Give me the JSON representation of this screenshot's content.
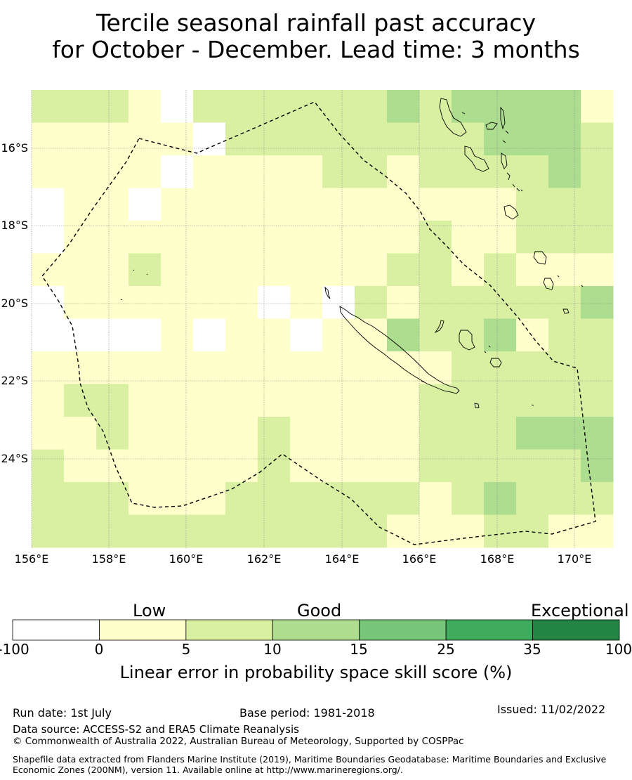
{
  "title": {
    "line1": "Tercile seasonal rainfall past accuracy",
    "line2": "for October - December. Lead time: 3 months"
  },
  "map": {
    "longitudes": [
      "156°E",
      "158°E",
      "160°E",
      "162°E",
      "164°E",
      "166°E",
      "168°E",
      "170°E"
    ],
    "latitudes": [
      "16°S",
      "18°S",
      "20°S",
      "22°S",
      "24°S"
    ],
    "grid_columns": 18,
    "grid_rows": 14,
    "skill_class_colors": [
      "#ffffff",
      "#ffffcc",
      "#d9f0a3",
      "#addd8e",
      "#78c679",
      "#41ab5d",
      "#238443"
    ],
    "skill_class_grid": [
      [
        2,
        2,
        2,
        1,
        0,
        2,
        2,
        2,
        2,
        2,
        2,
        3,
        2,
        3,
        3,
        3,
        3,
        1
      ],
      [
        1,
        1,
        1,
        1,
        1,
        0,
        2,
        2,
        2,
        2,
        2,
        2,
        2,
        2,
        3,
        3,
        3,
        2
      ],
      [
        1,
        1,
        1,
        1,
        0,
        1,
        1,
        1,
        1,
        2,
        2,
        1,
        2,
        2,
        2,
        2,
        3,
        2
      ],
      [
        0,
        1,
        1,
        0,
        1,
        1,
        1,
        1,
        1,
        1,
        1,
        1,
        1,
        1,
        1,
        2,
        2,
        2
      ],
      [
        0,
        1,
        1,
        1,
        1,
        1,
        1,
        1,
        1,
        1,
        1,
        1,
        2,
        1,
        1,
        2,
        2,
        2
      ],
      [
        1,
        1,
        1,
        2,
        1,
        1,
        1,
        1,
        1,
        1,
        1,
        2,
        2,
        1,
        2,
        1,
        1,
        1
      ],
      [
        0,
        1,
        1,
        1,
        1,
        1,
        1,
        0,
        1,
        0,
        2,
        1,
        2,
        2,
        2,
        2,
        2,
        3
      ],
      [
        0,
        0,
        0,
        0,
        1,
        0,
        1,
        1,
        0,
        1,
        1,
        3,
        2,
        2,
        3,
        1,
        2,
        2
      ],
      [
        1,
        1,
        1,
        1,
        1,
        1,
        1,
        1,
        1,
        1,
        1,
        1,
        1,
        2,
        2,
        2,
        2,
        2
      ],
      [
        1,
        2,
        2,
        1,
        1,
        1,
        1,
        1,
        1,
        1,
        1,
        1,
        2,
        2,
        2,
        2,
        2,
        2
      ],
      [
        1,
        1,
        2,
        1,
        1,
        1,
        1,
        2,
        1,
        1,
        1,
        1,
        2,
        2,
        2,
        3,
        3,
        3
      ],
      [
        2,
        1,
        1,
        1,
        1,
        1,
        1,
        2,
        1,
        1,
        1,
        1,
        2,
        2,
        2,
        2,
        2,
        3
      ],
      [
        2,
        2,
        2,
        1,
        1,
        1,
        2,
        2,
        2,
        2,
        2,
        2,
        1,
        2,
        3,
        2,
        2,
        2
      ],
      [
        2,
        2,
        2,
        2,
        2,
        2,
        2,
        2,
        2,
        2,
        2,
        1,
        1,
        1,
        2,
        2,
        1,
        1
      ]
    ],
    "zone_outline": "dashed maritime boundary"
  },
  "colorbar": {
    "category_labels": [
      "Low",
      "Good",
      "Exceptional"
    ],
    "ticks": [
      "-100",
      "0",
      "5",
      "10",
      "15",
      "25",
      "35",
      "100"
    ],
    "colors": [
      "#ffffff",
      "#ffffcc",
      "#d9f0a3",
      "#addd8e",
      "#78c679",
      "#41ab5d",
      "#238443"
    ],
    "title": "Linear error in probability space skill score (%)"
  },
  "footer": {
    "run_date": "Run date: 1st July",
    "base_period": "Base period: 1981-2018",
    "issued": "Issued: 11/02/2022",
    "data_source": "Data source: ACCESS-S2 and ERA5 Climate Reanalysis",
    "copyright": "© Commonwealth of Australia 2022, Australian Bureau of Meteorology, Supported by COSPPac",
    "shapefile": "Shapefile data extracted from Flanders Marine Institute (2019), Maritime Boundaries Geodatabase: Maritime Boundaries and Exclusive Economic Zones (200NM), version 11. Available online at http://www.marineregions.org/."
  }
}
